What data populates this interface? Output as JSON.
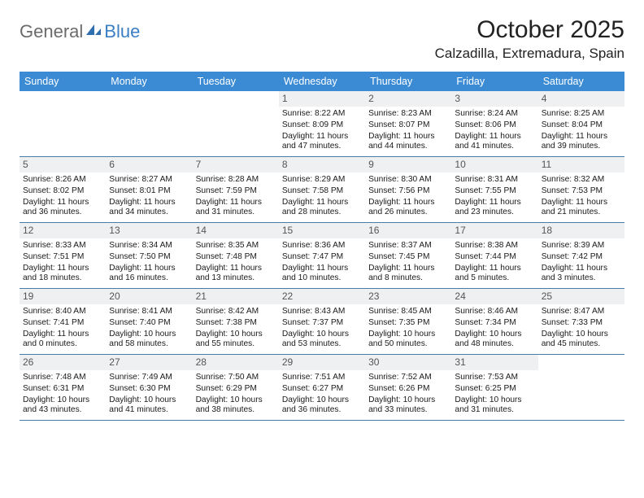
{
  "logo": {
    "general": "General",
    "blue": "Blue"
  },
  "title": "October 2025",
  "location": "Calzadilla, Extremadura, Spain",
  "colors": {
    "header_bg": "#3b8bd4",
    "row_border": "#4a7ca8",
    "daybar_bg": "#eef0f1",
    "logo_gray": "#6b6b6b",
    "logo_blue": "#3b7fc4"
  },
  "weekdays": [
    "Sunday",
    "Monday",
    "Tuesday",
    "Wednesday",
    "Thursday",
    "Friday",
    "Saturday"
  ],
  "weeks": [
    [
      null,
      null,
      null,
      {
        "d": "1",
        "sr": "Sunrise: 8:22 AM",
        "ss": "Sunset: 8:09 PM",
        "dl": "Daylight: 11 hours and 47 minutes."
      },
      {
        "d": "2",
        "sr": "Sunrise: 8:23 AM",
        "ss": "Sunset: 8:07 PM",
        "dl": "Daylight: 11 hours and 44 minutes."
      },
      {
        "d": "3",
        "sr": "Sunrise: 8:24 AM",
        "ss": "Sunset: 8:06 PM",
        "dl": "Daylight: 11 hours and 41 minutes."
      },
      {
        "d": "4",
        "sr": "Sunrise: 8:25 AM",
        "ss": "Sunset: 8:04 PM",
        "dl": "Daylight: 11 hours and 39 minutes."
      }
    ],
    [
      {
        "d": "5",
        "sr": "Sunrise: 8:26 AM",
        "ss": "Sunset: 8:02 PM",
        "dl": "Daylight: 11 hours and 36 minutes."
      },
      {
        "d": "6",
        "sr": "Sunrise: 8:27 AM",
        "ss": "Sunset: 8:01 PM",
        "dl": "Daylight: 11 hours and 34 minutes."
      },
      {
        "d": "7",
        "sr": "Sunrise: 8:28 AM",
        "ss": "Sunset: 7:59 PM",
        "dl": "Daylight: 11 hours and 31 minutes."
      },
      {
        "d": "8",
        "sr": "Sunrise: 8:29 AM",
        "ss": "Sunset: 7:58 PM",
        "dl": "Daylight: 11 hours and 28 minutes."
      },
      {
        "d": "9",
        "sr": "Sunrise: 8:30 AM",
        "ss": "Sunset: 7:56 PM",
        "dl": "Daylight: 11 hours and 26 minutes."
      },
      {
        "d": "10",
        "sr": "Sunrise: 8:31 AM",
        "ss": "Sunset: 7:55 PM",
        "dl": "Daylight: 11 hours and 23 minutes."
      },
      {
        "d": "11",
        "sr": "Sunrise: 8:32 AM",
        "ss": "Sunset: 7:53 PM",
        "dl": "Daylight: 11 hours and 21 minutes."
      }
    ],
    [
      {
        "d": "12",
        "sr": "Sunrise: 8:33 AM",
        "ss": "Sunset: 7:51 PM",
        "dl": "Daylight: 11 hours and 18 minutes."
      },
      {
        "d": "13",
        "sr": "Sunrise: 8:34 AM",
        "ss": "Sunset: 7:50 PM",
        "dl": "Daylight: 11 hours and 16 minutes."
      },
      {
        "d": "14",
        "sr": "Sunrise: 8:35 AM",
        "ss": "Sunset: 7:48 PM",
        "dl": "Daylight: 11 hours and 13 minutes."
      },
      {
        "d": "15",
        "sr": "Sunrise: 8:36 AM",
        "ss": "Sunset: 7:47 PM",
        "dl": "Daylight: 11 hours and 10 minutes."
      },
      {
        "d": "16",
        "sr": "Sunrise: 8:37 AM",
        "ss": "Sunset: 7:45 PM",
        "dl": "Daylight: 11 hours and 8 minutes."
      },
      {
        "d": "17",
        "sr": "Sunrise: 8:38 AM",
        "ss": "Sunset: 7:44 PM",
        "dl": "Daylight: 11 hours and 5 minutes."
      },
      {
        "d": "18",
        "sr": "Sunrise: 8:39 AM",
        "ss": "Sunset: 7:42 PM",
        "dl": "Daylight: 11 hours and 3 minutes."
      }
    ],
    [
      {
        "d": "19",
        "sr": "Sunrise: 8:40 AM",
        "ss": "Sunset: 7:41 PM",
        "dl": "Daylight: 11 hours and 0 minutes."
      },
      {
        "d": "20",
        "sr": "Sunrise: 8:41 AM",
        "ss": "Sunset: 7:40 PM",
        "dl": "Daylight: 10 hours and 58 minutes."
      },
      {
        "d": "21",
        "sr": "Sunrise: 8:42 AM",
        "ss": "Sunset: 7:38 PM",
        "dl": "Daylight: 10 hours and 55 minutes."
      },
      {
        "d": "22",
        "sr": "Sunrise: 8:43 AM",
        "ss": "Sunset: 7:37 PM",
        "dl": "Daylight: 10 hours and 53 minutes."
      },
      {
        "d": "23",
        "sr": "Sunrise: 8:45 AM",
        "ss": "Sunset: 7:35 PM",
        "dl": "Daylight: 10 hours and 50 minutes."
      },
      {
        "d": "24",
        "sr": "Sunrise: 8:46 AM",
        "ss": "Sunset: 7:34 PM",
        "dl": "Daylight: 10 hours and 48 minutes."
      },
      {
        "d": "25",
        "sr": "Sunrise: 8:47 AM",
        "ss": "Sunset: 7:33 PM",
        "dl": "Daylight: 10 hours and 45 minutes."
      }
    ],
    [
      {
        "d": "26",
        "sr": "Sunrise: 7:48 AM",
        "ss": "Sunset: 6:31 PM",
        "dl": "Daylight: 10 hours and 43 minutes."
      },
      {
        "d": "27",
        "sr": "Sunrise: 7:49 AM",
        "ss": "Sunset: 6:30 PM",
        "dl": "Daylight: 10 hours and 41 minutes."
      },
      {
        "d": "28",
        "sr": "Sunrise: 7:50 AM",
        "ss": "Sunset: 6:29 PM",
        "dl": "Daylight: 10 hours and 38 minutes."
      },
      {
        "d": "29",
        "sr": "Sunrise: 7:51 AM",
        "ss": "Sunset: 6:27 PM",
        "dl": "Daylight: 10 hours and 36 minutes."
      },
      {
        "d": "30",
        "sr": "Sunrise: 7:52 AM",
        "ss": "Sunset: 6:26 PM",
        "dl": "Daylight: 10 hours and 33 minutes."
      },
      {
        "d": "31",
        "sr": "Sunrise: 7:53 AM",
        "ss": "Sunset: 6:25 PM",
        "dl": "Daylight: 10 hours and 31 minutes."
      },
      null
    ]
  ]
}
